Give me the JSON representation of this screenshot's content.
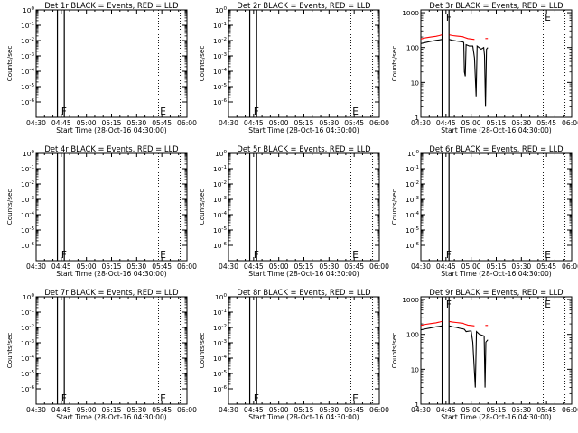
{
  "chart_data": [
    {
      "type": "line",
      "title": "Det 1r BLACK = Events, RED = LLD",
      "xlabel": "Start Time (28-Oct-16 04:30:00)",
      "ylabel": "Counts/sec",
      "x_ticks": [
        "04:30",
        "04:45",
        "05:00",
        "05:15",
        "05:30",
        "05:45",
        "06:00"
      ],
      "x_range_minutes": [
        0,
        90
      ],
      "y_scale": "log",
      "y_ticks": [
        "10^0",
        "10^-1",
        "10^-2",
        "10^-3",
        "10^-4",
        "10^-5",
        "10^-6"
      ],
      "y_range": [
        1e-07,
        1
      ],
      "markers": [
        {
          "label": "F",
          "x": 15
        },
        {
          "label": "E",
          "x": 74
        }
      ],
      "vertical_lines": [
        {
          "x": 12.7,
          "style": "solid"
        },
        {
          "x": 16.8,
          "style": "solid"
        },
        {
          "x": 73,
          "style": "dotted"
        },
        {
          "x": 86,
          "style": "dotted"
        }
      ],
      "series": []
    },
    {
      "type": "line",
      "title": "Det 2r BLACK = Events, RED = LLD",
      "xlabel": "Start Time (28-Oct-16 04:30:00)",
      "ylabel": "Counts/sec",
      "x_ticks": [
        "04:30",
        "04:45",
        "05:00",
        "05:15",
        "05:30",
        "05:45",
        "06:00"
      ],
      "x_range_minutes": [
        0,
        90
      ],
      "y_scale": "log",
      "y_ticks": [
        "10^0",
        "10^-1",
        "10^-2",
        "10^-3",
        "10^-4",
        "10^-5",
        "10^-6"
      ],
      "y_range": [
        1e-07,
        1
      ],
      "markers": [
        {
          "label": "F",
          "x": 15
        },
        {
          "label": "E",
          "x": 74
        }
      ],
      "vertical_lines": [
        {
          "x": 12.7,
          "style": "solid"
        },
        {
          "x": 16.8,
          "style": "solid"
        },
        {
          "x": 73,
          "style": "dotted"
        },
        {
          "x": 86,
          "style": "dotted"
        }
      ],
      "series": []
    },
    {
      "type": "line",
      "title": "Det 3r BLACK = Events, RED = LLD",
      "xlabel": "Start Time (28-Oct-16 04:30:00)",
      "ylabel": "Counts/sec",
      "x_ticks": [
        "04:30",
        "04:45",
        "05:00",
        "05:15",
        "05:30",
        "05:45",
        "06:00"
      ],
      "x_range_minutes": [
        0,
        90
      ],
      "y_scale": "log",
      "y_ticks": [
        "1",
        "10",
        "100",
        "1000"
      ],
      "y_range": [
        1,
        1200
      ],
      "markers": [
        {
          "label": "F",
          "x": 15
        },
        {
          "label": "E",
          "x": 74
        }
      ],
      "vertical_lines": [
        {
          "x": 12.7,
          "style": "solid"
        },
        {
          "x": 16.8,
          "style": "solid"
        },
        {
          "x": 73,
          "style": "dotted"
        },
        {
          "x": 86,
          "style": "dotted"
        }
      ],
      "series": [
        {
          "name": "Events",
          "color": "#000000",
          "segments": [
            [
              [
                0,
                130
              ],
              [
                3,
                140
              ],
              [
                6,
                150
              ],
              [
                9,
                160
              ],
              [
                11,
                165
              ],
              [
                12.5,
                170
              ]
            ],
            [
              [
                17,
                170
              ],
              [
                19,
                160
              ],
              [
                21,
                155
              ],
              [
                23,
                150
              ],
              [
                25,
                145
              ],
              [
                25.6,
                140
              ],
              [
                26,
                20
              ],
              [
                26.5,
                15
              ],
              [
                27,
                120
              ],
              [
                29,
                110
              ],
              [
                31,
                110
              ],
              [
                32,
                50
              ],
              [
                33,
                4
              ],
              [
                33.6,
                110
              ],
              [
                36,
                90
              ],
              [
                37.5,
                100
              ],
              [
                38,
                60
              ],
              [
                38.6,
                2
              ],
              [
                39.2,
                90
              ],
              [
                40,
                100
              ]
            ]
          ]
        },
        {
          "name": "LLD",
          "color": "#ff0000",
          "segments": [
            [
              [
                0,
                175
              ],
              [
                3,
                190
              ],
              [
                6,
                200
              ],
              [
                9,
                210
              ],
              [
                11,
                220
              ],
              [
                12.5,
                230
              ]
            ],
            [
              [
                17,
                230
              ],
              [
                19,
                220
              ],
              [
                21,
                215
              ],
              [
                23,
                210
              ],
              [
                25,
                205
              ],
              [
                26,
                195
              ],
              [
                28,
                180
              ],
              [
                30,
                175
              ],
              [
                32,
                170
              ]
            ],
            [
              [
                38.5,
                180
              ],
              [
                40,
                180
              ]
            ]
          ]
        }
      ]
    },
    {
      "type": "line",
      "title": "Det 4r BLACK = Events, RED = LLD",
      "xlabel": "Start Time (28-Oct-16 04:30:00)",
      "ylabel": "Counts/sec",
      "x_ticks": [
        "04:30",
        "04:45",
        "05:00",
        "05:15",
        "05:30",
        "05:45",
        "06:00"
      ],
      "x_range_minutes": [
        0,
        90
      ],
      "y_scale": "log",
      "y_ticks": [
        "10^0",
        "10^-1",
        "10^-2",
        "10^-3",
        "10^-4",
        "10^-5",
        "10^-6"
      ],
      "y_range": [
        1e-07,
        1
      ],
      "markers": [
        {
          "label": "F",
          "x": 15
        },
        {
          "label": "E",
          "x": 74
        }
      ],
      "vertical_lines": [
        {
          "x": 12.7,
          "style": "solid"
        },
        {
          "x": 16.8,
          "style": "solid"
        },
        {
          "x": 73,
          "style": "dotted"
        },
        {
          "x": 86,
          "style": "dotted"
        }
      ],
      "series": []
    },
    {
      "type": "line",
      "title": "Det 5r BLACK = Events, RED = LLD",
      "xlabel": "Start Time (28-Oct-16 04:30:00)",
      "ylabel": "Counts/sec",
      "x_ticks": [
        "04:30",
        "04:45",
        "05:00",
        "05:15",
        "05:30",
        "05:45",
        "06:00"
      ],
      "x_range_minutes": [
        0,
        90
      ],
      "y_scale": "log",
      "y_ticks": [
        "10^0",
        "10^-1",
        "10^-2",
        "10^-3",
        "10^-4",
        "10^-5",
        "10^-6"
      ],
      "y_range": [
        1e-07,
        1
      ],
      "markers": [
        {
          "label": "F",
          "x": 15
        },
        {
          "label": "E",
          "x": 74
        }
      ],
      "vertical_lines": [
        {
          "x": 12.7,
          "style": "solid"
        },
        {
          "x": 16.8,
          "style": "solid"
        },
        {
          "x": 73,
          "style": "dotted"
        },
        {
          "x": 86,
          "style": "dotted"
        }
      ],
      "series": []
    },
    {
      "type": "line",
      "title": "Det 6r BLACK = Events, RED = LLD",
      "xlabel": "Start Time (28-Oct-16 04:30:00)",
      "ylabel": "Counts/sec",
      "x_ticks": [
        "04:30",
        "04:45",
        "05:00",
        "05:15",
        "05:30",
        "05:45",
        "06:00"
      ],
      "x_range_minutes": [
        0,
        90
      ],
      "y_scale": "log",
      "y_ticks": [
        "10^0",
        "10^-1",
        "10^-2",
        "10^-3",
        "10^-4",
        "10^-5",
        "10^-6"
      ],
      "y_range": [
        1e-07,
        1
      ],
      "markers": [
        {
          "label": "F",
          "x": 15
        },
        {
          "label": "E",
          "x": 74
        }
      ],
      "vertical_lines": [
        {
          "x": 12.7,
          "style": "solid"
        },
        {
          "x": 16.8,
          "style": "solid"
        },
        {
          "x": 73,
          "style": "dotted"
        },
        {
          "x": 86,
          "style": "dotted"
        }
      ],
      "series": []
    },
    {
      "type": "line",
      "title": "Det 7r BLACK = Events, RED = LLD",
      "xlabel": "Start Time (28-Oct-16 04:30:00)",
      "ylabel": "Counts/sec",
      "x_ticks": [
        "04:30",
        "04:45",
        "05:00",
        "05:15",
        "05:30",
        "05:45",
        "06:00"
      ],
      "x_range_minutes": [
        0,
        90
      ],
      "y_scale": "log",
      "y_ticks": [
        "10^0",
        "10^-1",
        "10^-2",
        "10^-3",
        "10^-4",
        "10^-5",
        "10^-6"
      ],
      "y_range": [
        1e-07,
        1
      ],
      "markers": [
        {
          "label": "F",
          "x": 15
        },
        {
          "label": "E",
          "x": 74
        }
      ],
      "vertical_lines": [
        {
          "x": 12.7,
          "style": "solid"
        },
        {
          "x": 16.8,
          "style": "solid"
        },
        {
          "x": 73,
          "style": "dotted"
        },
        {
          "x": 86,
          "style": "dotted"
        }
      ],
      "series": []
    },
    {
      "type": "line",
      "title": "Det 8r BLACK = Events, RED = LLD",
      "xlabel": "Start Time (28-Oct-16 04:30:00)",
      "ylabel": "Counts/sec",
      "x_ticks": [
        "04:30",
        "04:45",
        "05:00",
        "05:15",
        "05:30",
        "05:45",
        "06:00"
      ],
      "x_range_minutes": [
        0,
        90
      ],
      "y_scale": "log",
      "y_ticks": [
        "10^0",
        "10^-1",
        "10^-2",
        "10^-3",
        "10^-4",
        "10^-5",
        "10^-6"
      ],
      "y_range": [
        1e-07,
        1
      ],
      "markers": [
        {
          "label": "F",
          "x": 15
        },
        {
          "label": "E",
          "x": 74
        }
      ],
      "vertical_lines": [
        {
          "x": 12.7,
          "style": "solid"
        },
        {
          "x": 16.8,
          "style": "solid"
        },
        {
          "x": 73,
          "style": "dotted"
        },
        {
          "x": 86,
          "style": "dotted"
        }
      ],
      "series": []
    },
    {
      "type": "line",
      "title": "Det 9r BLACK = Events, RED = LLD",
      "xlabel": "Start Time (28-Oct-16 04:30:00)",
      "ylabel": "Counts/sec",
      "x_ticks": [
        "04:30",
        "04:45",
        "05:00",
        "05:15",
        "05:30",
        "05:45",
        "06:00"
      ],
      "x_range_minutes": [
        0,
        90
      ],
      "y_scale": "log",
      "y_ticks": [
        "1",
        "10",
        "100",
        "1000"
      ],
      "y_range": [
        1,
        1200
      ],
      "markers": [
        {
          "label": "F",
          "x": 15
        },
        {
          "label": "E",
          "x": 74
        }
      ],
      "vertical_lines": [
        {
          "x": 12.7,
          "style": "solid"
        },
        {
          "x": 16.8,
          "style": "solid"
        },
        {
          "x": 73,
          "style": "dotted"
        },
        {
          "x": 86,
          "style": "dotted"
        }
      ],
      "series": [
        {
          "name": "Events",
          "color": "#000000",
          "segments": [
            [
              [
                0,
                135
              ],
              [
                3,
                145
              ],
              [
                6,
                155
              ],
              [
                9,
                165
              ],
              [
                11,
                170
              ],
              [
                12.5,
                175
              ]
            ],
            [
              [
                17,
                175
              ],
              [
                19,
                165
              ],
              [
                21,
                160
              ],
              [
                23,
                150
              ],
              [
                25,
                145
              ],
              [
                26,
                140
              ],
              [
                27,
                120
              ],
              [
                29,
                125
              ],
              [
                30,
                125
              ],
              [
                31,
                60
              ],
              [
                32.5,
                3
              ],
              [
                33.2,
                120
              ],
              [
                35,
                100
              ],
              [
                37.8,
                90
              ],
              [
                38.3,
                3
              ],
              [
                38.8,
                60
              ],
              [
                40,
                70
              ]
            ]
          ]
        },
        {
          "name": "LLD",
          "color": "#ff0000",
          "segments": [
            [
              [
                0,
                180
              ],
              [
                3,
                195
              ],
              [
                6,
                205
              ],
              [
                9,
                215
              ],
              [
                11,
                225
              ],
              [
                12.5,
                235
              ]
            ],
            [
              [
                17,
                235
              ],
              [
                19,
                225
              ],
              [
                21,
                220
              ],
              [
                23,
                215
              ],
              [
                25,
                210
              ],
              [
                26,
                200
              ],
              [
                28,
                185
              ],
              [
                30,
                180
              ],
              [
                32,
                175
              ]
            ],
            [
              [
                38.5,
                180
              ],
              [
                40,
                180
              ]
            ]
          ]
        }
      ]
    }
  ]
}
